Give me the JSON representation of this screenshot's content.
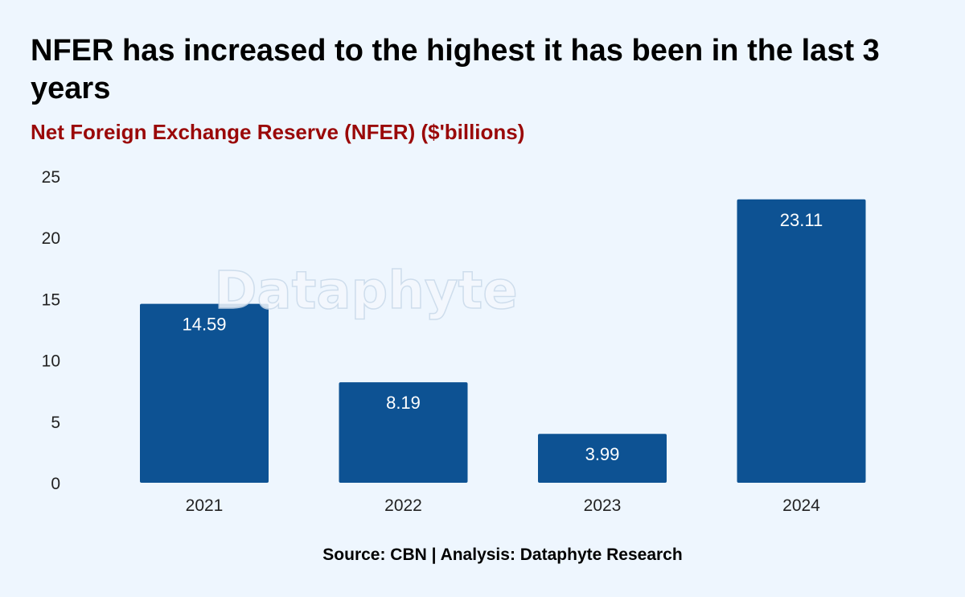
{
  "title": "NFER has increased to the highest it has been in the last 3 years",
  "subtitle": "Net Foreign Exchange Reserve (NFER) ($'billions)",
  "source": "Source: CBN | Analysis: Dataphyte Research",
  "watermark": "Dataphyte",
  "colors": {
    "background": "#eef6fe",
    "bar": "#0d5293",
    "subtitle": "#9a0808"
  },
  "chart_data": {
    "type": "bar",
    "categories": [
      "2021",
      "2022",
      "2023",
      "2024"
    ],
    "values": [
      14.59,
      8.19,
      3.99,
      23.11
    ],
    "value_labels": [
      "14.59",
      "8.19",
      "3.99",
      "23.11"
    ],
    "y_ticks": [
      0,
      5,
      10,
      15,
      20,
      25
    ],
    "ylim": [
      0,
      25
    ],
    "xlabel": "",
    "ylabel": "",
    "grid": false,
    "legend": "none"
  }
}
